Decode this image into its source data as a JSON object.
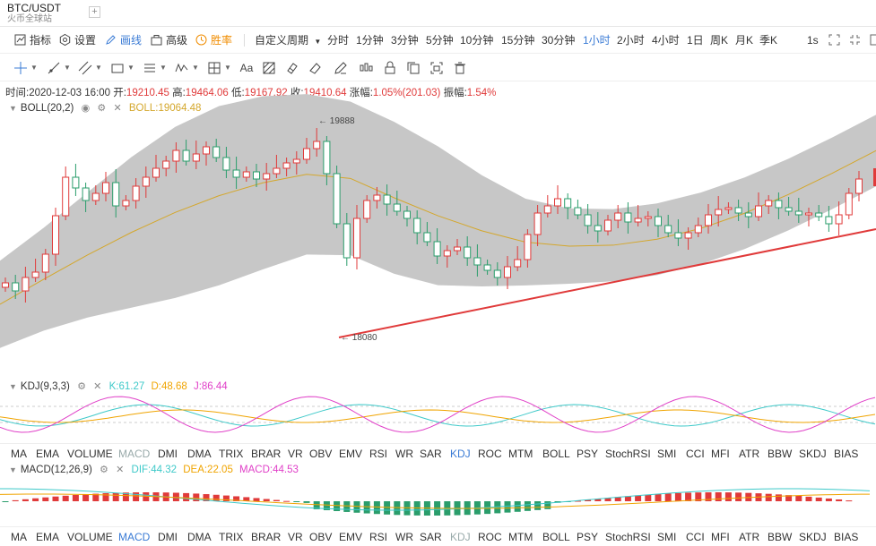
{
  "header": {
    "pair": "BTC/USDT",
    "source": "火币全球站",
    "add_tab": "+"
  },
  "toolbar": {
    "indicators": "指标",
    "settings": "设置",
    "draw": "画线",
    "advanced": "高级",
    "winrate": "胜率",
    "custom_period": "自定义周期",
    "periods": [
      "分时",
      "1分钟",
      "3分钟",
      "5分钟",
      "10分钟",
      "15分钟",
      "30分钟",
      "1小时",
      "2小时",
      "4小时",
      "1日",
      "周K",
      "月K",
      "季K"
    ],
    "active_period": "1小时",
    "interval": "1s"
  },
  "info": {
    "time_label": "时间:",
    "time": "2020-12-03 16:00",
    "open_label": "开:",
    "open": "19210.45",
    "high_label": "高:",
    "high": "19464.06",
    "low_label": "低:",
    "low": "19167.92",
    "close_label": "收:",
    "close": "19410.64",
    "change_label": "涨幅:",
    "change": "1.05%(201.03)",
    "amplitude_label": "振幅:",
    "amplitude": "1.54%"
  },
  "boll": {
    "name": "BOLL(20,2)",
    "value": "BOLL:19064.48",
    "high_marker": "19888",
    "low_marker": "18080"
  },
  "kdj": {
    "name": "KDJ(9,3,3)",
    "k": "K:61.27",
    "d": "D:48.68",
    "j": "J:86.44"
  },
  "macd": {
    "name": "MACD(12,26,9)",
    "dif": "DIF:44.32",
    "dea": "DEA:22.05",
    "macd": "MACD:44.53"
  },
  "indicator_tabs": [
    "MA",
    "EMA",
    "VOLUME",
    "MACD",
    "DMI",
    "DMA",
    "TRIX",
    "BRAR",
    "VR",
    "OBV",
    "EMV",
    "RSI",
    "WR",
    "SAR",
    "KDJ",
    "ROC",
    "MTM",
    "BOLL",
    "PSY",
    "StochRSI",
    "SMI",
    "CCI",
    "MFI",
    "ATR",
    "BBW",
    "SKDJ",
    "BIAS"
  ],
  "tabs_row1_active": "KDJ",
  "tabs_row1_muted": "MACD",
  "tabs_row2_active": "MACD",
  "tabs_row2_muted": "KDJ",
  "colors": {
    "up": "#e03a3a",
    "down": "#2a9d6b",
    "accent": "#3a7bd5",
    "boll_mid": "#d4a72c",
    "k_line": "#3ec9c9",
    "d_line": "#f0a400",
    "j_line": "#e040c8"
  }
}
